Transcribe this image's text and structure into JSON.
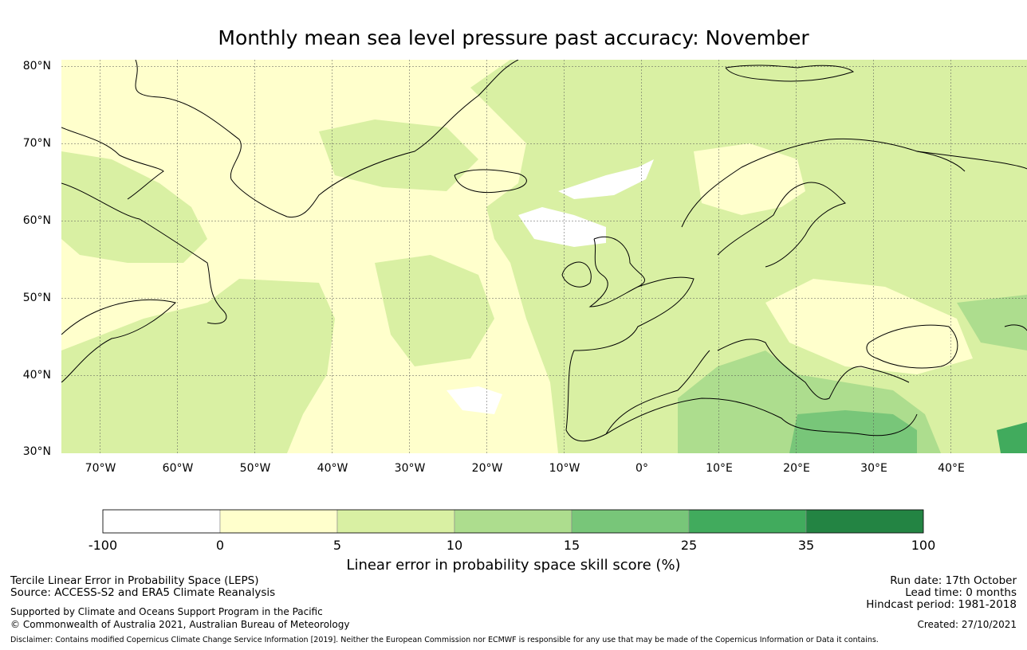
{
  "title": "Monthly mean sea level pressure past accuracy: November",
  "map": {
    "region": "North Atlantic and Europe",
    "lat_range": [
      30,
      80
    ],
    "lon_range": [
      -75,
      50
    ],
    "lat_labels": [
      "30°N",
      "40°N",
      "50°N",
      "60°N",
      "70°N",
      "80°N"
    ],
    "lon_labels": [
      "70°W",
      "60°W",
      "50°W",
      "40°W",
      "30°W",
      "20°W",
      "10°W",
      "0°",
      "10°E",
      "20°E",
      "30°E",
      "40°E"
    ],
    "colors": {
      "neg": "#ffffff",
      "c0_5": "#ffffcc",
      "c5_10": "#d9f0a3",
      "c10_15": "#addd8e",
      "c15_25": "#78c679",
      "c25_35": "#41ab5d",
      "c35_100": "#238443",
      "coast": "#000000",
      "grid": "#555555"
    }
  },
  "colorbar": {
    "ticks": [
      "-100",
      "0",
      "5",
      "10",
      "15",
      "25",
      "35",
      "100"
    ],
    "colors": [
      "#ffffff",
      "#ffffcc",
      "#d9f0a3",
      "#addd8e",
      "#78c679",
      "#41ab5d",
      "#238443"
    ],
    "label": "Linear error in probability space skill score (%)"
  },
  "footer": {
    "line1": "Tercile Linear Error in Probability Space (LEPS)",
    "line2": "Source: ACCESS-S2 and ERA5 Climate Reanalysis",
    "support": "Supported by Climate and Oceans Support Program in the Pacific",
    "copyright": "© Commonwealth of Australia 2021, Australian Bureau of Meteorology",
    "run_date": "Run date: 17th October",
    "lead_time": "Lead time: 0 months",
    "hindcast": "Hindcast period: 1981-2018",
    "created": "Created: 27/10/2021",
    "disclaimer": "Disclaimer: Contains modified Copernicus Climate Change Service Information [2019]. Neither the European Commission nor ECMWF is responsible for any use that may be made of the Copernicus Information or Data it contains."
  }
}
